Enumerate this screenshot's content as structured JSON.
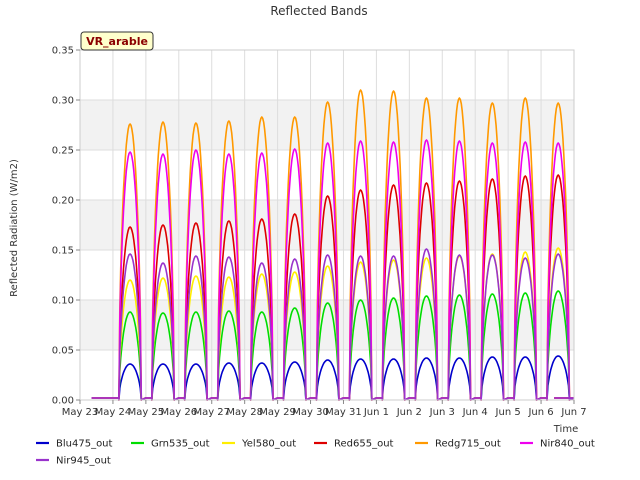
{
  "chart_data": {
    "type": "line",
    "title": "Reflected Bands",
    "xlabel": "Time",
    "ylabel": "Reflected Radiation (W/m2)",
    "badge": "VR_arable",
    "xlim": [
      0,
      15
    ],
    "ylim": [
      0,
      0.35
    ],
    "yticks": [
      0.0,
      0.05,
      0.1,
      0.15,
      0.2,
      0.25,
      0.3,
      0.35
    ],
    "ytick_labels": [
      "0.00",
      "0.05",
      "0.10",
      "0.15",
      "0.20",
      "0.25",
      "0.30",
      "0.35"
    ],
    "xtick_labels": [
      "May 23",
      "May 24",
      "May 25",
      "May 26",
      "May 27",
      "May 28",
      "May 29",
      "May 30",
      "May 31",
      "Jun 1",
      "Jun 2",
      "Jun 3",
      "Jun 4",
      "Jun 5",
      "Jun 6",
      "Jun 7"
    ],
    "grid": true,
    "legend_position": "bottom",
    "x_note": "daily peaks listed per series for days May 24 through Jun 6 (14 days)",
    "series": [
      {
        "name": "Blu475_out",
        "color": "#0000cc",
        "peaks": [
          0.036,
          0.036,
          0.036,
          0.037,
          0.037,
          0.038,
          0.04,
          0.041,
          0.041,
          0.042,
          0.042,
          0.043,
          0.043,
          0.044
        ]
      },
      {
        "name": "Grn535_out",
        "color": "#00dd00",
        "peaks": [
          0.088,
          0.087,
          0.088,
          0.089,
          0.088,
          0.092,
          0.097,
          0.1,
          0.102,
          0.104,
          0.105,
          0.106,
          0.107,
          0.109
        ]
      },
      {
        "name": "Yel580_out",
        "color": "#ffee00",
        "peaks": [
          0.12,
          0.122,
          0.124,
          0.123,
          0.126,
          0.128,
          0.134,
          0.138,
          0.14,
          0.142,
          0.144,
          0.146,
          0.148,
          0.152
        ]
      },
      {
        "name": "Red655_out",
        "color": "#dd0000",
        "peaks": [
          0.173,
          0.175,
          0.177,
          0.179,
          0.181,
          0.186,
          0.204,
          0.21,
          0.215,
          0.217,
          0.219,
          0.221,
          0.224,
          0.225
        ]
      },
      {
        "name": "Redg715_out",
        "color": "#ff9900",
        "peaks": [
          0.276,
          0.278,
          0.277,
          0.279,
          0.283,
          0.283,
          0.298,
          0.31,
          0.309,
          0.302,
          0.302,
          0.297,
          0.302,
          0.297
        ]
      },
      {
        "name": "Nir840_out",
        "color": "#ee00ee",
        "peaks": [
          0.248,
          0.246,
          0.25,
          0.246,
          0.247,
          0.251,
          0.257,
          0.259,
          0.258,
          0.26,
          0.259,
          0.257,
          0.258,
          0.257
        ]
      },
      {
        "name": "Nir945_out",
        "color": "#9933cc",
        "peaks": [
          0.146,
          0.137,
          0.144,
          0.143,
          0.137,
          0.141,
          0.145,
          0.144,
          0.144,
          0.151,
          0.145,
          0.145,
          0.142,
          0.146
        ]
      }
    ]
  }
}
